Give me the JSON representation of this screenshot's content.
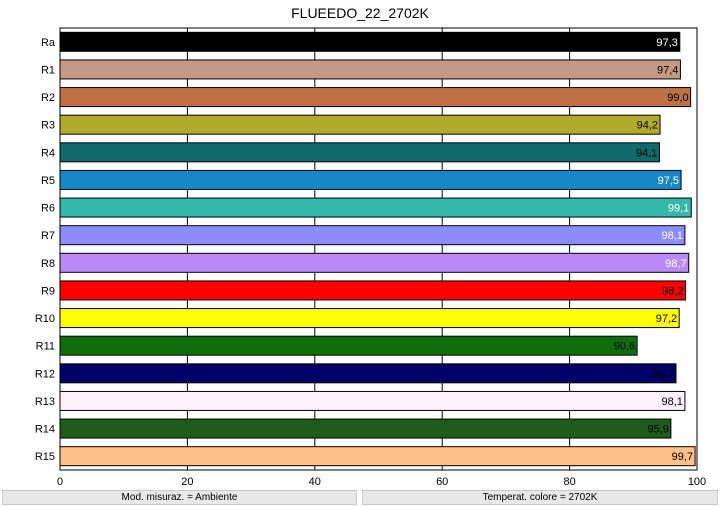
{
  "chart_data": {
    "type": "bar",
    "orientation": "horizontal",
    "title": "FLUEEDO_22_2702K",
    "categories": [
      "Ra",
      "R1",
      "R2",
      "R3",
      "R4",
      "R5",
      "R6",
      "R7",
      "R8",
      "R9",
      "R10",
      "R11",
      "R12",
      "R13",
      "R14",
      "R15"
    ],
    "values": [
      97.3,
      97.4,
      99.0,
      94.2,
      94.1,
      97.5,
      99.1,
      98.1,
      98.7,
      98.2,
      97.2,
      90.6,
      96.7,
      98.1,
      95.9,
      99.7
    ],
    "value_labels": [
      "97,3",
      "97,4",
      "99,0",
      "94,2",
      "94,1",
      "97,5",
      "99,1",
      "98,1",
      "98,7",
      "98,2",
      "97,2",
      "90,6",
      "96,7",
      "98,1",
      "95,9",
      "99,7"
    ],
    "colors": [
      "#000000",
      "#c49a87",
      "#bf7045",
      "#b0ab2a",
      "#0f6b6b",
      "#1787c7",
      "#34b8a9",
      "#8c8cff",
      "#b98af7",
      "#ff0000",
      "#ffff00",
      "#0f6e0b",
      "#000066",
      "#fff0fa",
      "#1f5c1c",
      "#ffc08a"
    ],
    "label_colors": [
      "#ffffff",
      "#000000",
      "#000000",
      "#000000",
      "#000000",
      "#ffffff",
      "#ffffff",
      "#ffffff",
      "#ffffff",
      "#000000",
      "#000000",
      "#000000",
      "#000000",
      "#000000",
      "#000000",
      "#000000"
    ],
    "x_ticks": [
      "0",
      "20",
      "40",
      "60",
      "80",
      "100"
    ],
    "xlim": [
      0,
      100
    ],
    "grid": true,
    "xlabel": "",
    "ylabel": ""
  },
  "status": {
    "left": "Mod. misuraz. = Ambiente",
    "right": "Temperat. colore = 2702K"
  }
}
